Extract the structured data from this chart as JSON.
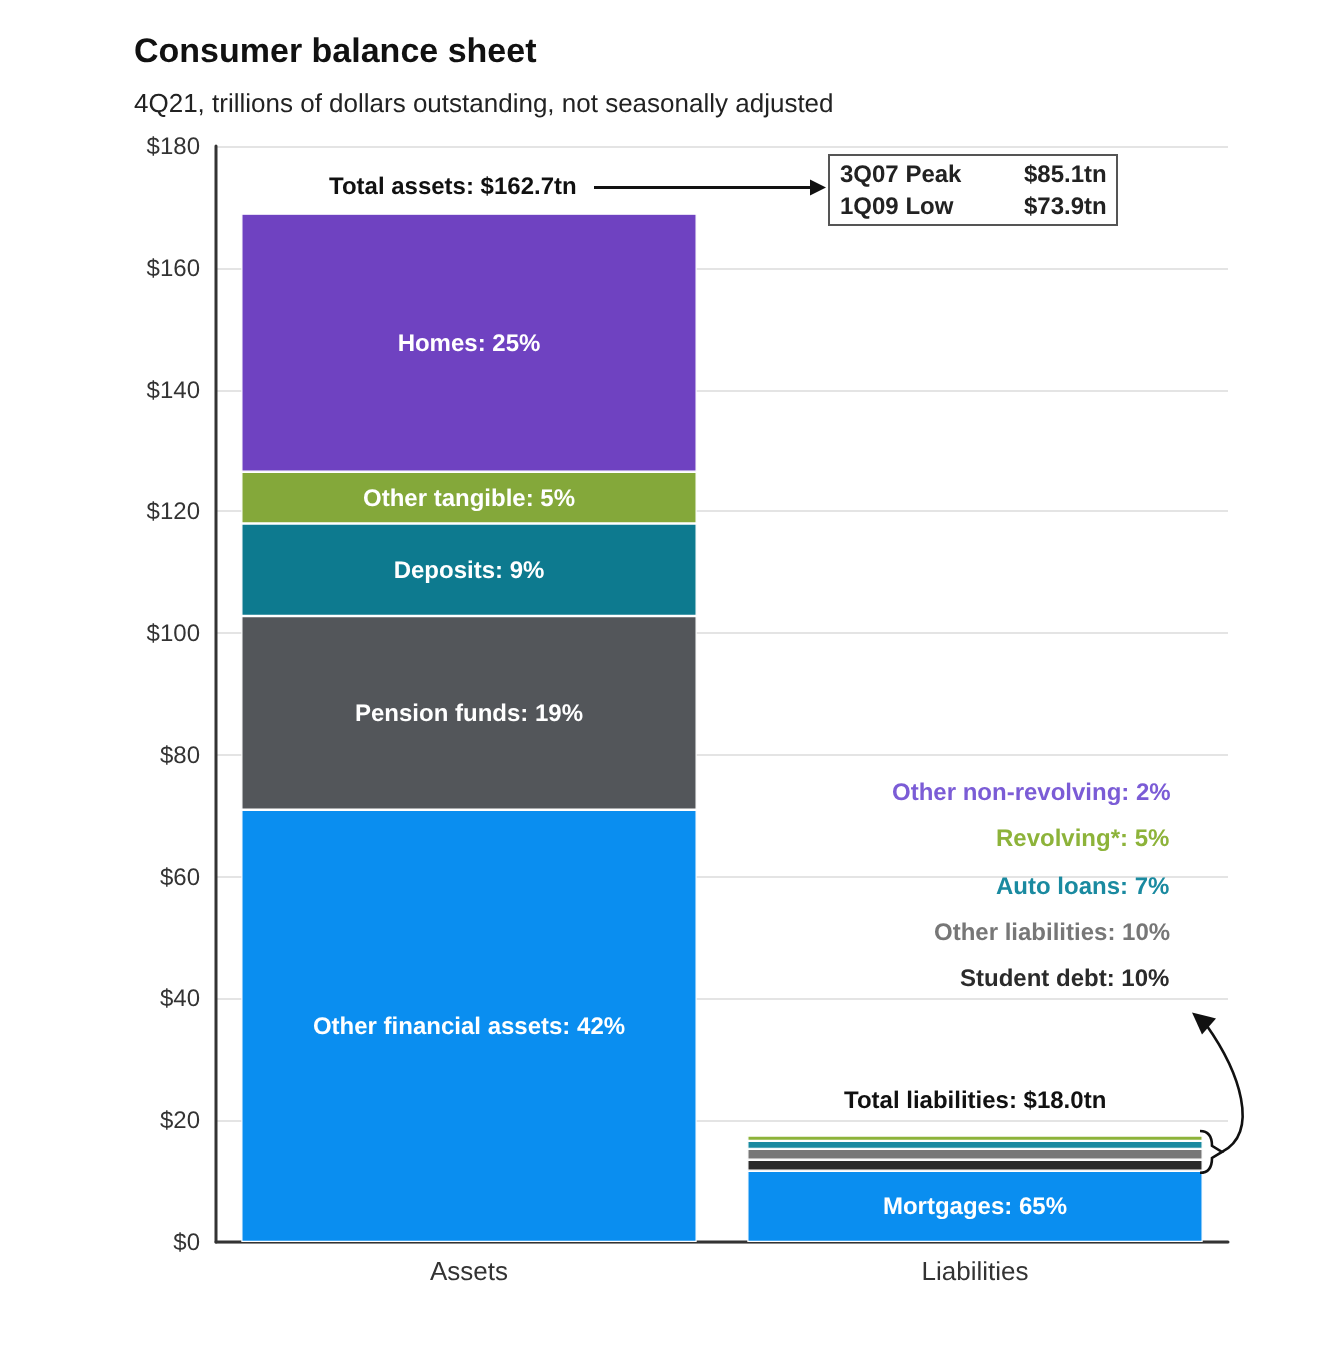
{
  "chart_data": {
    "type": "bar",
    "stacked": true,
    "title": "Consumer balance sheet",
    "subtitle": "4Q21, trillions of dollars outstanding, not seasonally adjusted",
    "categories": [
      "Assets",
      "Liabilities"
    ],
    "series": [
      {
        "name": "Other financial assets: 42%",
        "color": "#0a8ef0",
        "values": [
          71,
          null
        ]
      },
      {
        "name": "Pension funds: 19%",
        "color": "#53565a",
        "values": [
          31.8,
          null
        ]
      },
      {
        "name": "Deposits: 9%",
        "color": "#0d7a8f",
        "values": [
          15.2,
          null
        ]
      },
      {
        "name": "Other tangible: 5%",
        "color": "#84a83a",
        "values": [
          8.5,
          null
        ]
      },
      {
        "name": "Homes: 25%",
        "color": "#6f42c1",
        "values": [
          42.4,
          null
        ]
      },
      {
        "name": "Mortgages: 65%",
        "color": "#0a8ef0",
        "values": [
          null,
          11.7
        ]
      },
      {
        "name": "Student debt: 10%",
        "color": "#2b2b2b",
        "values": [
          null,
          1.8
        ]
      },
      {
        "name": "Other liabilities: 10%",
        "color": "#777777",
        "values": [
          null,
          1.8
        ]
      },
      {
        "name": "Auto loans: 7%",
        "color": "#1a8aa0",
        "values": [
          null,
          1.3
        ]
      },
      {
        "name": "Revolving*: 5%",
        "color": "#8db33a",
        "values": [
          null,
          0.9
        ]
      },
      {
        "name": "Other non-revolving: 2%",
        "color": "#7b5cd6",
        "values": [
          null,
          0.4
        ]
      }
    ],
    "ylim": [
      0,
      180
    ],
    "yticks": [
      {
        "value": 0,
        "label": "$0"
      },
      {
        "value": 20,
        "label": "$20"
      },
      {
        "value": 40,
        "label": "$40"
      },
      {
        "value": 60,
        "label": "$60"
      },
      {
        "value": 80,
        "label": "$80"
      },
      {
        "value": 100,
        "label": "$100"
      },
      {
        "value": 120,
        "label": "$120"
      },
      {
        "value": 140,
        "label": "$140"
      },
      {
        "value": 160,
        "label": "$160"
      },
      {
        "value": 180,
        "label": "$180"
      }
    ],
    "grid": "y",
    "legend": false,
    "annotations": [
      "Total assets: $162.7tn",
      "3Q07 Peak $85.1tn\n1Q09 Low $73.9tn",
      "Total liabilities: $18.0tn"
    ]
  }
}
